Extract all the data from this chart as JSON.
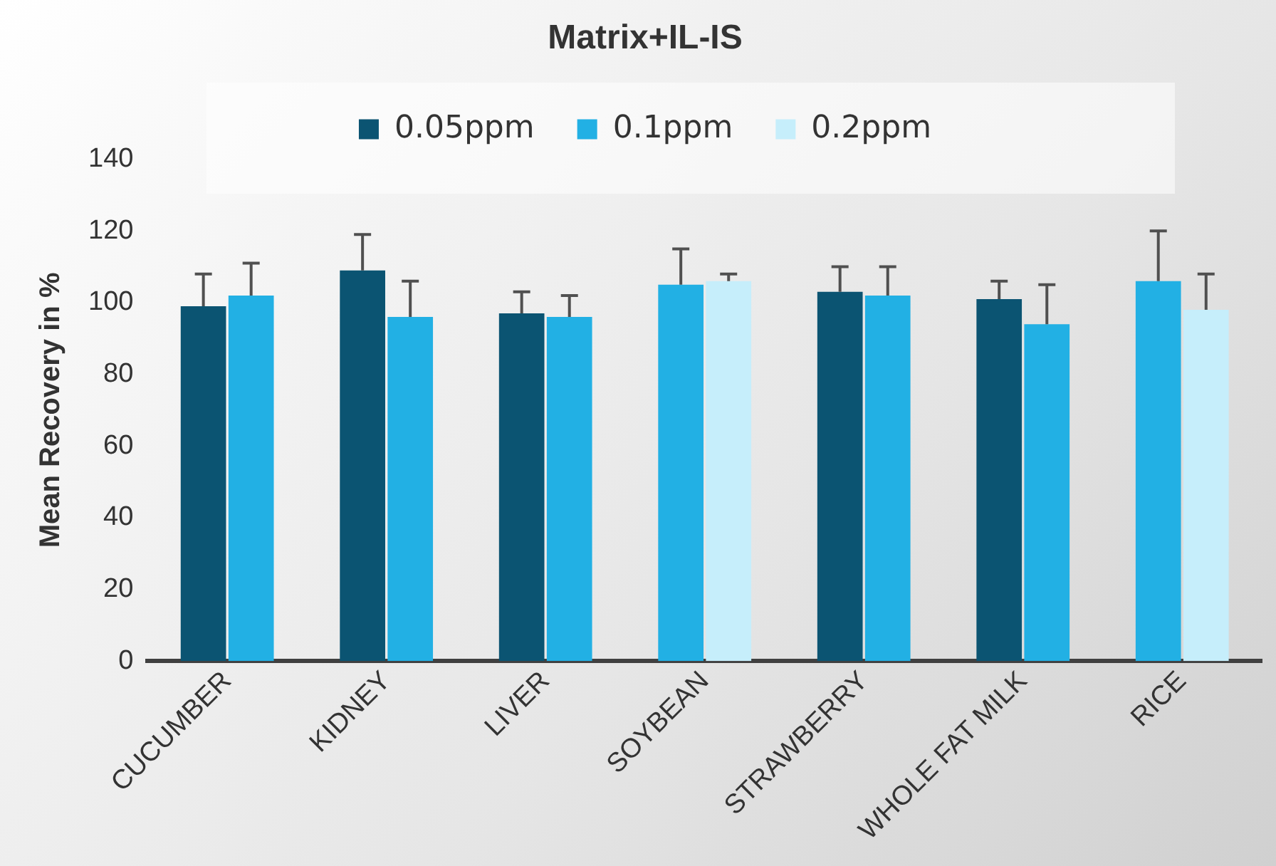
{
  "chart_data": {
    "type": "bar",
    "title": "Matrix+IL-IS",
    "ylabel": "Mean Recovery in %",
    "categories": [
      "CUCUMBER",
      "KIDNEY",
      "LIVER",
      "SOYBEAN",
      "STRAWBERRY",
      "WHOLE FAT MILK",
      "RICE"
    ],
    "series": [
      {
        "name": "0.05ppm",
        "color": "#0b5472",
        "values": [
          99,
          109,
          97,
          null,
          103,
          101,
          null
        ],
        "errors": [
          [
            99,
            108
          ],
          [
            109,
            119
          ],
          [
            97,
            103
          ],
          null,
          [
            103,
            110
          ],
          [
            101,
            106
          ],
          null
        ]
      },
      {
        "name": "0.1ppm",
        "color": "#22b0e4",
        "values": [
          102,
          96,
          96,
          105,
          102,
          94,
          106
        ],
        "errors": [
          [
            102,
            111
          ],
          [
            96,
            106
          ],
          [
            96,
            102
          ],
          [
            105,
            115
          ],
          [
            102,
            110
          ],
          [
            94,
            105
          ],
          [
            106,
            120
          ]
        ]
      },
      {
        "name": "0.2ppm",
        "color": "#c6eefb",
        "values": [
          null,
          null,
          null,
          106,
          null,
          null,
          98
        ],
        "errors": [
          null,
          null,
          null,
          [
            106,
            108
          ],
          null,
          null,
          [
            98,
            108
          ]
        ]
      }
    ],
    "ylim": [
      0,
      140
    ],
    "yticks": [
      0,
      20,
      40,
      60,
      80,
      100,
      120,
      140
    ],
    "grid": false,
    "legend": "top"
  }
}
